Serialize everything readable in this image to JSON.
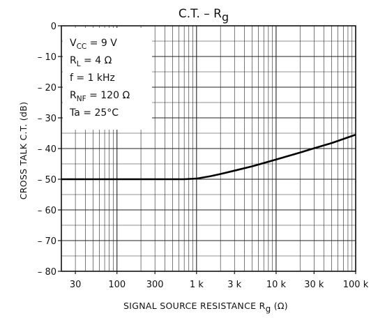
{
  "chart_data": {
    "type": "line",
    "title": {
      "base": "C.T.  –  R",
      "sub": "g"
    },
    "xlabel": {
      "pre": "SIGNAL SOURCE RESISTANCE   R",
      "sub": "g",
      "post": "  (Ω)"
    },
    "ylabel": "CROSS TALK  C.T.  (dB)",
    "x_scale": "log",
    "xlim": [
      20,
      100000
    ],
    "ylim": [
      -80,
      0
    ],
    "grid": true,
    "x_ticks": [
      {
        "value": 30,
        "label": "30"
      },
      {
        "value": 100,
        "label": "100"
      },
      {
        "value": 300,
        "label": "300"
      },
      {
        "value": 1000,
        "label": "1 k"
      },
      {
        "value": 3000,
        "label": "3 k"
      },
      {
        "value": 10000,
        "label": "10 k"
      },
      {
        "value": 30000,
        "label": "30 k"
      },
      {
        "value": 100000,
        "label": "100 k"
      }
    ],
    "y_ticks": [
      {
        "value": 0,
        "label": "0"
      },
      {
        "value": -10,
        "label": "– 10"
      },
      {
        "value": -20,
        "label": "– 20"
      },
      {
        "value": -30,
        "label": "– 30"
      },
      {
        "value": -40,
        "label": "– 40"
      },
      {
        "value": -50,
        "label": "– 50"
      },
      {
        "value": -60,
        "label": "– 60"
      },
      {
        "value": -70,
        "label": "– 70"
      },
      {
        "value": -80,
        "label": "– 80"
      }
    ],
    "series": [
      {
        "x": [
          20,
          100,
          300,
          700,
          1000,
          1500,
          2000,
          3000,
          5000,
          10000,
          20000,
          30000,
          50000,
          100000
        ],
        "y": [
          -50,
          -50,
          -50,
          -50,
          -49.8,
          -49,
          -48.3,
          -47.2,
          -45.8,
          -43.6,
          -41.3,
          -39.9,
          -38.2,
          -35.5
        ]
      }
    ],
    "conditions": [
      {
        "main": "V",
        "sub": "CC",
        "rest": " = 9 V"
      },
      {
        "main": "R",
        "sub": "L",
        "rest": " = 4 Ω"
      },
      {
        "main": "f",
        "sub": "",
        "rest": " = 1 kHz"
      },
      {
        "main": "R",
        "sub": "NF",
        "rest": " = 120 Ω"
      },
      {
        "main": "Ta",
        "sub": "",
        "rest": " = 25°C"
      }
    ]
  }
}
